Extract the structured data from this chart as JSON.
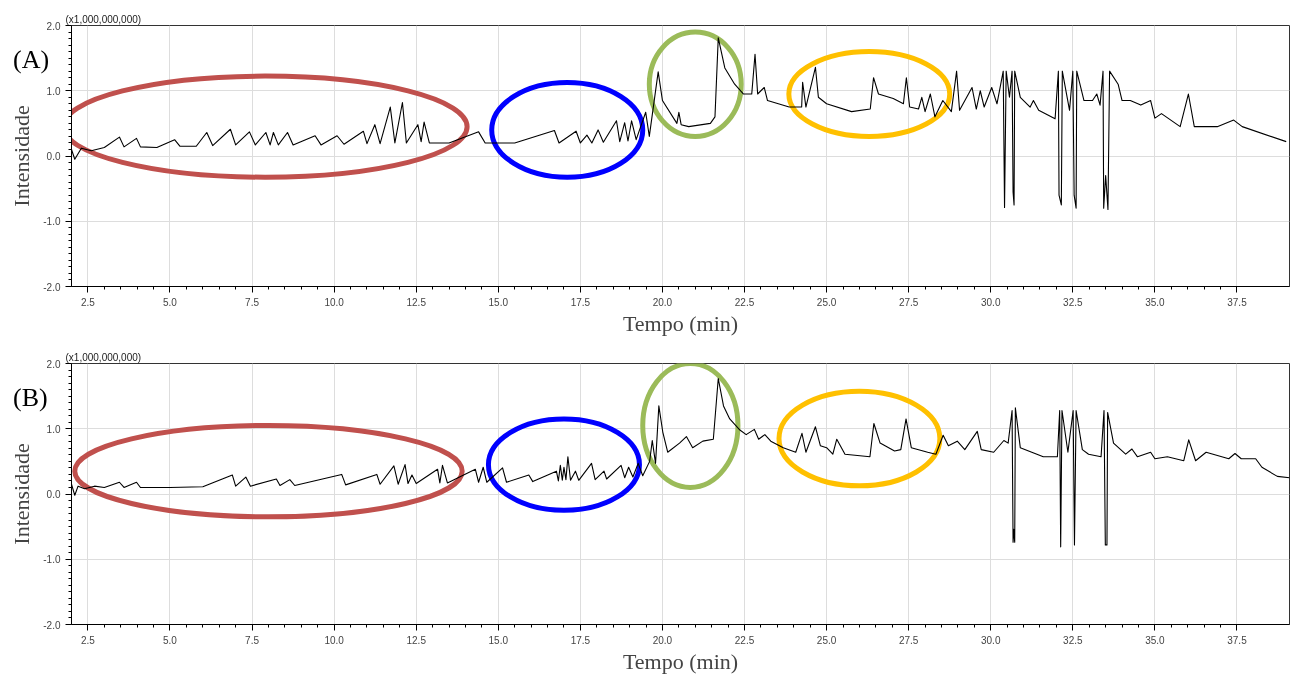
{
  "chart_data": [
    {
      "type": "line",
      "annotations": [
        "(x1,000,000,000)",
        "(A)"
      ],
      "xlabel": "Tempo (min)",
      "ylabel": "Intensidade",
      "xlim": [
        2.0,
        39.1
      ],
      "ylim": [
        -2.0,
        2.0
      ],
      "xticks": [
        {
          "value": 2.5,
          "label": "2.5"
        },
        {
          "value": 5,
          "label": "5.0"
        },
        {
          "value": 7.5,
          "label": "7.5"
        },
        {
          "value": 10,
          "label": "10.0"
        },
        {
          "value": 12.5,
          "label": "12.5"
        },
        {
          "value": 15,
          "label": "15.0"
        },
        {
          "value": 17.5,
          "label": "17.5"
        },
        {
          "value": 20,
          "label": "20.0"
        },
        {
          "value": 22.5,
          "label": "22.5"
        },
        {
          "value": 25,
          "label": "25.0"
        },
        {
          "value": 27.5,
          "label": "27.5"
        },
        {
          "value": 30,
          "label": "30.0"
        },
        {
          "value": 32.5,
          "label": "32.5"
        },
        {
          "value": 35,
          "label": "35.0"
        },
        {
          "value": 37.5,
          "label": "37.5"
        }
      ],
      "yticks": [
        {
          "value": -2,
          "label": "-2.0"
        },
        {
          "value": -1,
          "label": "-1.0"
        },
        {
          "value": 0,
          "label": "0.0"
        },
        {
          "value": 1,
          "label": "1.0"
        },
        {
          "value": 2,
          "label": "2.0"
        }
      ],
      "grid": true,
      "line_style": "solid",
      "series": [
        {
          "color": "#000000",
          "x": [
            2.0,
            2.1,
            2.3,
            2.6,
            3.0,
            3.46,
            3.6,
            3.98,
            4.1,
            4.6,
            5.14,
            5.3,
            5.8,
            6.12,
            6.3,
            6.84,
            7.0,
            7.42,
            7.6,
            7.92,
            8.05,
            8.15,
            8.3,
            8.58,
            8.75,
            9.42,
            9.6,
            10.09,
            10.3,
            10.89,
            11.0,
            11.24,
            11.4,
            11.71,
            11.85,
            12.08,
            12.2,
            12.55,
            12.65,
            12.74,
            12.9,
            13.5,
            14.4,
            14.6,
            15.5,
            16.71,
            16.85,
            17.37,
            17.5,
            17.7,
            17.85,
            18.04,
            18.2,
            18.6,
            18.7,
            18.85,
            18.95,
            19.06,
            19.2,
            19.49,
            19.6,
            19.87,
            20.0,
            20.44,
            20.5,
            20.57,
            20.8,
            21.46,
            21.6,
            21.7,
            21.9,
            22.2,
            22.47,
            22.72,
            22.82,
            22.9,
            23.1,
            23.2,
            23.86,
            24.24,
            24.27,
            24.37,
            24.66,
            24.75,
            25.0,
            25.76,
            26.33,
            26.43,
            26.58,
            27.03,
            27.34,
            27.43,
            27.53,
            27.8,
            27.9,
            28.0,
            28.16,
            28.3,
            28.54,
            28.8,
            28.96,
            29.05,
            29.43,
            29.56,
            29.68,
            29.8,
            30.03,
            30.19,
            30.38,
            30.42,
            30.47,
            30.57,
            30.65,
            30.68,
            30.71,
            30.73,
            30.9,
            31.2,
            31.3,
            31.46,
            31.96,
            32.06,
            32.08,
            32.15,
            32.18,
            32.4,
            32.5,
            32.54,
            32.6,
            32.62,
            32.84,
            33.1,
            33.23,
            33.33,
            33.42,
            33.44,
            33.5,
            33.57,
            33.62,
            33.88,
            34.0,
            34.25,
            34.57,
            34.87,
            35.0,
            35.2,
            35.77,
            36.02,
            36.2,
            36.9,
            37.4,
            37.66,
            39.0
          ],
          "values": [
            0.1,
            -0.05,
            0.12,
            0.08,
            0.13,
            0.29,
            0.14,
            0.27,
            0.14,
            0.13,
            0.25,
            0.15,
            0.15,
            0.36,
            0.16,
            0.41,
            0.17,
            0.37,
            0.17,
            0.36,
            0.17,
            0.36,
            0.17,
            0.36,
            0.17,
            0.31,
            0.17,
            0.31,
            0.18,
            0.38,
            0.19,
            0.48,
            0.19,
            0.75,
            0.2,
            0.82,
            0.2,
            0.48,
            0.22,
            0.52,
            0.2,
            0.2,
            0.37,
            0.2,
            0.2,
            0.39,
            0.2,
            0.38,
            0.2,
            0.32,
            0.2,
            0.4,
            0.21,
            0.54,
            0.22,
            0.51,
            0.23,
            0.54,
            0.25,
            0.67,
            0.3,
            1.29,
            0.85,
            0.5,
            0.67,
            0.48,
            0.45,
            0.5,
            0.6,
            1.81,
            1.35,
            1.1,
            0.95,
            0.95,
            1.56,
            0.95,
            1.05,
            0.85,
            0.75,
            0.75,
            1.13,
            0.75,
            1.36,
            0.9,
            0.8,
            0.68,
            0.72,
            1.2,
            0.95,
            0.88,
            0.8,
            1.2,
            0.75,
            0.72,
            0.9,
            0.68,
            0.95,
            0.6,
            0.85,
            0.68,
            1.3,
            0.7,
            1.05,
            0.72,
            1.0,
            0.75,
            1.05,
            0.8,
            1.3,
            -0.79,
            1.3,
            0.9,
            1.3,
            -0.55,
            -0.75,
            1.3,
            0.9,
            0.75,
            0.85,
            0.7,
            0.57,
            1.3,
            -0.6,
            -0.75,
            1.3,
            0.7,
            1.3,
            -0.6,
            -0.8,
            1.3,
            0.85,
            0.85,
            0.95,
            0.78,
            1.3,
            -0.8,
            -0.3,
            -0.82,
            1.3,
            1.1,
            0.85,
            0.85,
            0.78,
            0.85,
            0.58,
            0.65,
            0.45,
            0.95,
            0.45,
            0.45,
            0.55,
            0.45,
            0.22
          ]
        }
      ]
    },
    {
      "type": "line",
      "annotations": [
        "(x1,000,000,000)",
        "(B)"
      ],
      "xlabel": "Tempo (min)",
      "ylabel": "Intensidade",
      "xlim": [
        2.0,
        39.1
      ],
      "ylim": [
        -2.0,
        2.0
      ],
      "xticks": [
        {
          "value": 2.5,
          "label": "2.5"
        },
        {
          "value": 5,
          "label": "5.0"
        },
        {
          "value": 7.5,
          "label": "7.5"
        },
        {
          "value": 10,
          "label": "10.0"
        },
        {
          "value": 12.5,
          "label": "12.5"
        },
        {
          "value": 15,
          "label": "15.0"
        },
        {
          "value": 17.5,
          "label": "17.5"
        },
        {
          "value": 20,
          "label": "20.0"
        },
        {
          "value": 22.5,
          "label": "22.5"
        },
        {
          "value": 25,
          "label": "25.0"
        },
        {
          "value": 27.5,
          "label": "27.5"
        },
        {
          "value": 30,
          "label": "30.0"
        },
        {
          "value": 32.5,
          "label": "32.5"
        },
        {
          "value": 35,
          "label": "35.0"
        },
        {
          "value": 37.5,
          "label": "37.5"
        }
      ],
      "yticks": [
        {
          "value": -2,
          "label": "-2.0"
        },
        {
          "value": -1,
          "label": "-1.0"
        },
        {
          "value": 0,
          "label": "0.0"
        },
        {
          "value": 1,
          "label": "1.0"
        },
        {
          "value": 2,
          "label": "2.0"
        }
      ],
      "grid": true,
      "line_style": "solid",
      "series": [
        {
          "color": "#000000",
          "x": [
            2.0,
            2.1,
            2.2,
            2.4,
            2.7,
            3.0,
            3.46,
            3.6,
            3.98,
            4.1,
            5.0,
            6.0,
            6.9,
            7.0,
            7.31,
            7.45,
            8.24,
            8.35,
            8.65,
            8.8,
            10.23,
            10.35,
            11.3,
            11.4,
            11.82,
            11.95,
            12.16,
            12.25,
            12.37,
            12.5,
            13.15,
            13.22,
            13.3,
            13.45,
            14.3,
            14.4,
            14.54,
            14.65,
            15.13,
            15.25,
            15.93,
            16.05,
            16.77,
            16.83,
            16.89,
            16.95,
            17.0,
            17.06,
            17.12,
            17.2,
            17.35,
            17.45,
            17.84,
            17.95,
            18.22,
            18.3,
            18.74,
            18.85,
            18.97,
            19.1,
            19.26,
            19.4,
            19.61,
            19.69,
            19.79,
            19.89,
            20.01,
            20.16,
            20.52,
            20.73,
            20.92,
            21.23,
            21.55,
            21.7,
            21.86,
            22.05,
            22.36,
            22.55,
            22.8,
            22.93,
            23.12,
            23.3,
            23.68,
            24.06,
            24.25,
            24.37,
            24.66,
            24.81,
            25.0,
            25.19,
            25.31,
            25.56,
            26.32,
            26.44,
            26.63,
            27.07,
            27.26,
            27.42,
            27.58,
            28.08,
            28.33,
            28.55,
            28.71,
            28.98,
            29.21,
            29.59,
            29.71,
            30.09,
            30.4,
            30.53,
            30.65,
            30.68,
            30.7,
            30.73,
            30.75,
            30.9,
            31.6,
            32.03,
            32.1,
            32.13,
            32.17,
            32.35,
            32.51,
            32.55,
            32.6,
            32.79,
            32.98,
            33.36,
            33.45,
            33.49,
            33.54,
            33.56,
            33.74,
            34.11,
            34.3,
            34.47,
            34.87,
            35.0,
            35.38,
            35.88,
            36.03,
            36.24,
            36.56,
            37.25,
            37.44,
            37.63,
            38.07,
            38.26,
            38.73,
            39.1
          ],
          "values": [
            0.15,
            -0.02,
            0.12,
            0.08,
            0.12,
            0.1,
            0.18,
            0.1,
            0.18,
            0.1,
            0.1,
            0.11,
            0.29,
            0.12,
            0.26,
            0.12,
            0.23,
            0.13,
            0.22,
            0.13,
            0.3,
            0.14,
            0.3,
            0.15,
            0.43,
            0.15,
            0.45,
            0.16,
            0.29,
            0.16,
            0.38,
            0.17,
            0.44,
            0.17,
            0.38,
            0.18,
            0.41,
            0.18,
            0.4,
            0.18,
            0.29,
            0.19,
            0.35,
            0.2,
            0.44,
            0.21,
            0.41,
            0.22,
            0.57,
            0.21,
            0.35,
            0.21,
            0.47,
            0.22,
            0.35,
            0.23,
            0.44,
            0.25,
            0.41,
            0.26,
            0.47,
            0.28,
            0.5,
            0.82,
            0.47,
            1.35,
            0.95,
            0.64,
            0.78,
            0.88,
            0.71,
            0.81,
            0.84,
            1.77,
            1.35,
            1.15,
            0.98,
            0.91,
            0.99,
            0.84,
            0.91,
            0.81,
            0.71,
            0.64,
            0.93,
            0.64,
            1.03,
            0.74,
            0.71,
            0.61,
            0.84,
            0.61,
            0.57,
            1.08,
            0.78,
            0.66,
            0.68,
            1.15,
            0.71,
            0.64,
            0.61,
            0.9,
            0.74,
            0.81,
            0.68,
            0.96,
            0.68,
            0.64,
            0.82,
            0.78,
            1.28,
            -0.74,
            -0.54,
            -0.74,
            1.32,
            0.71,
            0.57,
            0.57,
            1.28,
            -0.81,
            1.28,
            0.64,
            1.28,
            -0.78,
            1.28,
            0.68,
            0.61,
            0.57,
            1.28,
            -0.78,
            -0.78,
            1.25,
            0.78,
            0.61,
            0.69,
            0.57,
            0.64,
            0.54,
            0.57,
            0.51,
            0.83,
            0.51,
            0.64,
            0.54,
            0.62,
            0.54,
            0.54,
            0.41,
            0.27,
            0.25
          ]
        }
      ]
    }
  ]
}
